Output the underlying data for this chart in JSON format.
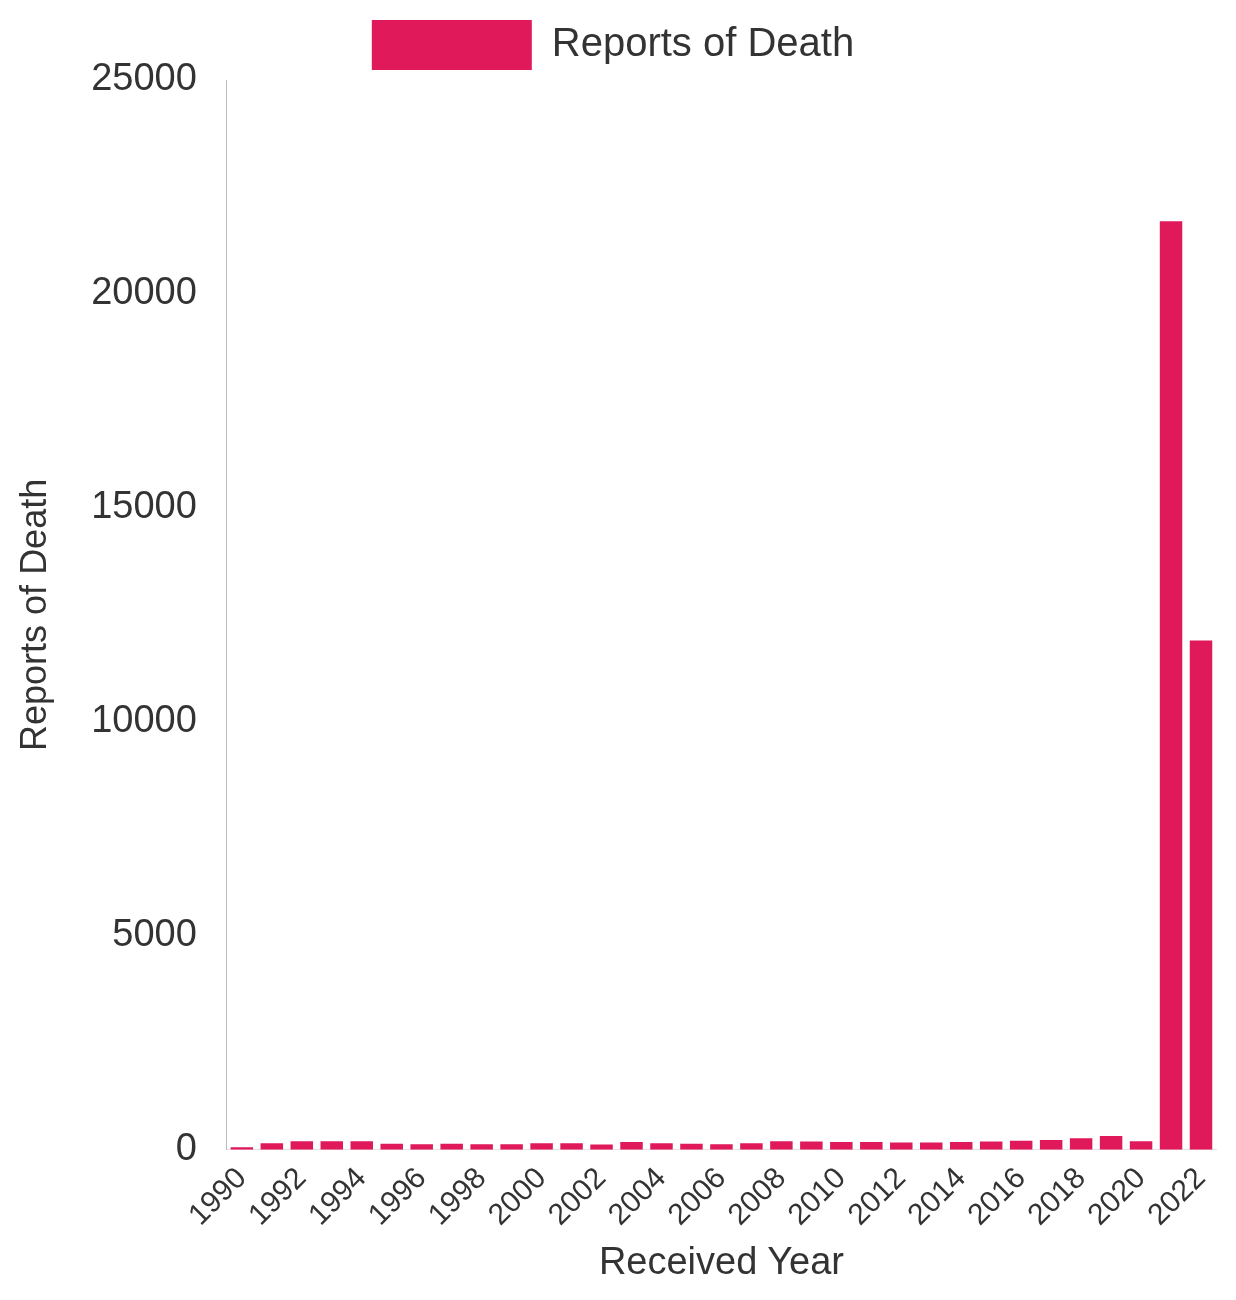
{
  "chart_data": {
    "type": "bar",
    "xlabel": "Received Year",
    "ylabel": "Reports of Death",
    "categories": [
      "1990",
      null,
      "1992",
      null,
      "1994",
      null,
      "1996",
      null,
      "1998",
      null,
      "2000",
      null,
      "2002",
      null,
      "2004",
      null,
      "2006",
      null,
      "2008",
      null,
      "2010",
      null,
      "2012",
      null,
      "2014",
      null,
      "2016",
      null,
      "2018",
      null,
      "2020",
      null,
      "2022"
    ],
    "series": [
      {
        "name": "Reports of Death",
        "color": "#e0195a",
        "values": [
          60,
          150,
          200,
          200,
          200,
          140,
          130,
          140,
          130,
          130,
          150,
          150,
          120,
          180,
          150,
          140,
          130,
          150,
          200,
          190,
          180,
          180,
          170,
          170,
          180,
          190,
          210,
          230,
          270,
          320,
          200,
          21700,
          11900
        ]
      }
    ],
    "ylim": [
      0,
      25000
    ],
    "yticks": [
      0,
      5000,
      10000,
      15000,
      20000,
      25000
    ],
    "grid": false,
    "legend": "top"
  }
}
